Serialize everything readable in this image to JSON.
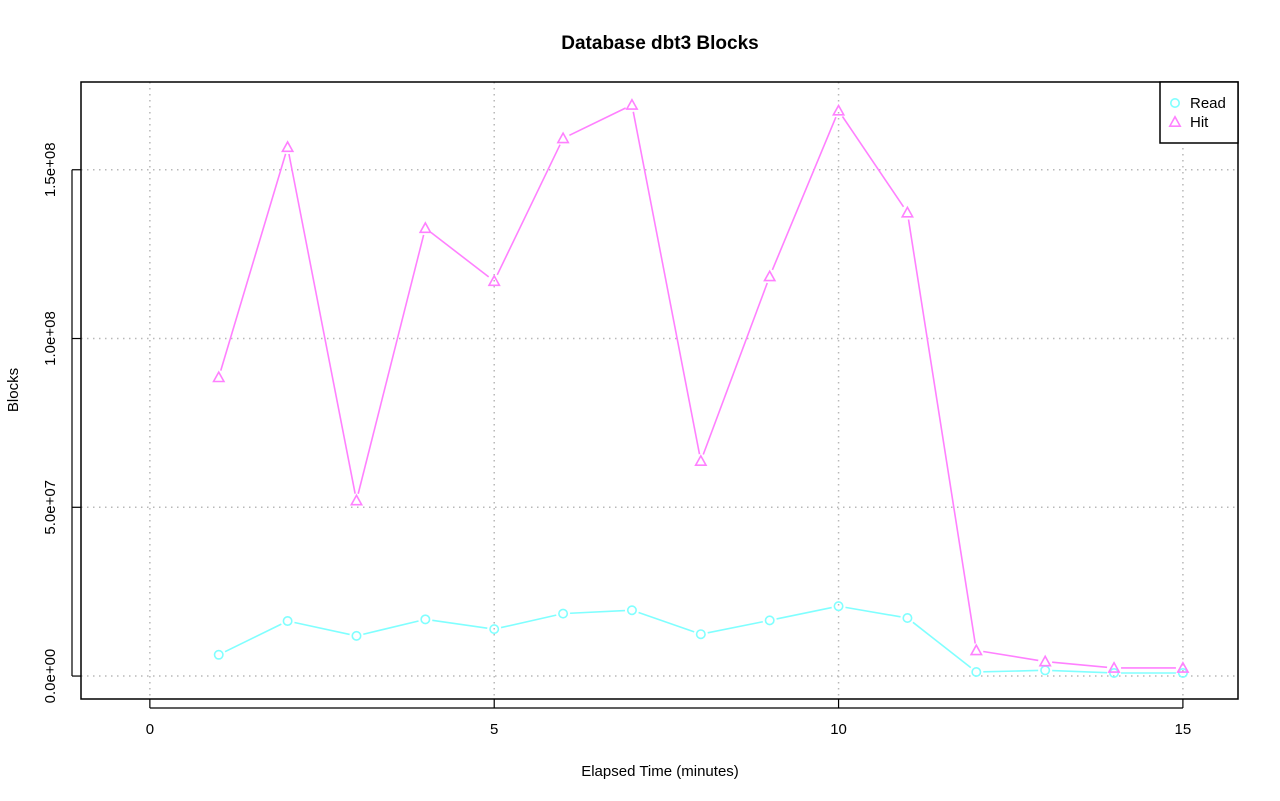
{
  "chart_data": {
    "type": "line",
    "title": "Database dbt3 Blocks",
    "xlabel": "Elapsed Time (minutes)",
    "ylabel": "Blocks",
    "xlim": [
      -1,
      15.8
    ],
    "ylim": [
      -6800000,
      176000000
    ],
    "x_ticks": [
      0,
      5,
      10,
      15
    ],
    "x_tick_labels": [
      "0",
      "5",
      "10",
      "15"
    ],
    "y_ticks": [
      0,
      50000000,
      100000000,
      150000000
    ],
    "y_tick_labels": [
      "0.0e+00",
      "5.0e+07",
      "1.0e+08",
      "1.5e+08"
    ],
    "grid": true,
    "legend_position": "top-right",
    "x": [
      1,
      2,
      3,
      4,
      5,
      6,
      7,
      8,
      9,
      10,
      11,
      12,
      13,
      14,
      15
    ],
    "series": [
      {
        "name": "Read",
        "color": "#80ffff",
        "marker": "circle",
        "values": [
          6300000,
          16300000,
          11900000,
          16800000,
          13900000,
          18500000,
          19500000,
          12400000,
          16500000,
          20700000,
          17200000,
          1200000,
          1700000,
          900000,
          900000
        ]
      },
      {
        "name": "Hit",
        "color": "#ff80ff",
        "marker": "triangle",
        "values": [
          88500000,
          156700000,
          52000000,
          132700000,
          117000000,
          159300000,
          169200000,
          63700000,
          118400000,
          167500000,
          137300000,
          7600000,
          4300000,
          2400000,
          2400000
        ]
      }
    ]
  }
}
